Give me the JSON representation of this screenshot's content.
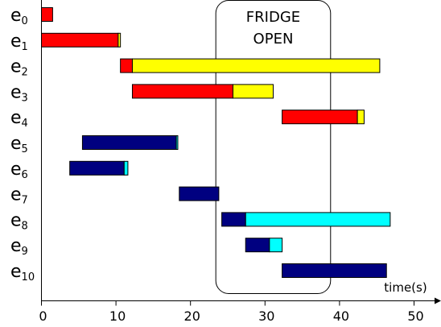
{
  "chart_data": {
    "type": "bar",
    "subtype": "gantt",
    "xlabel": "time(s)",
    "xlim": [
      0,
      50
    ],
    "x_ticks": [
      0,
      10,
      20,
      30,
      40,
      50
    ],
    "grid": false,
    "annotation": {
      "label_lines": [
        "FRIDGE",
        "OPEN"
      ],
      "x_start": 23.4,
      "x_end": 38.8
    },
    "colors": {
      "red": "#ff0000",
      "yellow": "#ffff00",
      "navy": "#000080",
      "cyan": "#00ffff"
    },
    "rows": [
      {
        "base": "e",
        "sub": "0",
        "segments": [
          {
            "start": 0.0,
            "end": 1.5,
            "color": "red"
          }
        ]
      },
      {
        "base": "e",
        "sub": "1",
        "segments": [
          {
            "start": 0.0,
            "end": 10.3,
            "color": "red"
          },
          {
            "start": 10.3,
            "end": 10.6,
            "color": "yellow"
          }
        ]
      },
      {
        "base": "e",
        "sub": "2",
        "segments": [
          {
            "start": 10.6,
            "end": 12.2,
            "color": "red"
          },
          {
            "start": 12.2,
            "end": 45.4,
            "color": "yellow"
          }
        ]
      },
      {
        "base": "e",
        "sub": "3",
        "segments": [
          {
            "start": 12.2,
            "end": 25.7,
            "color": "red"
          },
          {
            "start": 25.7,
            "end": 31.1,
            "color": "yellow"
          }
        ]
      },
      {
        "base": "e",
        "sub": "4",
        "segments": [
          {
            "start": 32.3,
            "end": 42.4,
            "color": "red"
          },
          {
            "start": 42.4,
            "end": 43.3,
            "color": "yellow"
          }
        ]
      },
      {
        "base": "e",
        "sub": "5",
        "segments": [
          {
            "start": 5.5,
            "end": 18.1,
            "color": "navy"
          },
          {
            "start": 18.1,
            "end": 18.3,
            "color": "cyan"
          }
        ]
      },
      {
        "base": "e",
        "sub": "6",
        "segments": [
          {
            "start": 3.8,
            "end": 11.1,
            "color": "navy"
          },
          {
            "start": 11.1,
            "end": 11.6,
            "color": "cyan"
          }
        ]
      },
      {
        "base": "e",
        "sub": "7",
        "segments": [
          {
            "start": 18.5,
            "end": 23.8,
            "color": "navy"
          }
        ]
      },
      {
        "base": "e",
        "sub": "8",
        "segments": [
          {
            "start": 24.2,
            "end": 27.4,
            "color": "navy"
          },
          {
            "start": 27.4,
            "end": 46.8,
            "color": "cyan"
          }
        ]
      },
      {
        "base": "e",
        "sub": "9",
        "segments": [
          {
            "start": 27.4,
            "end": 30.6,
            "color": "navy"
          },
          {
            "start": 30.6,
            "end": 32.3,
            "color": "cyan"
          }
        ]
      },
      {
        "base": "e",
        "sub": "10",
        "segments": [
          {
            "start": 32.3,
            "end": 46.3,
            "color": "navy"
          }
        ]
      }
    ]
  }
}
